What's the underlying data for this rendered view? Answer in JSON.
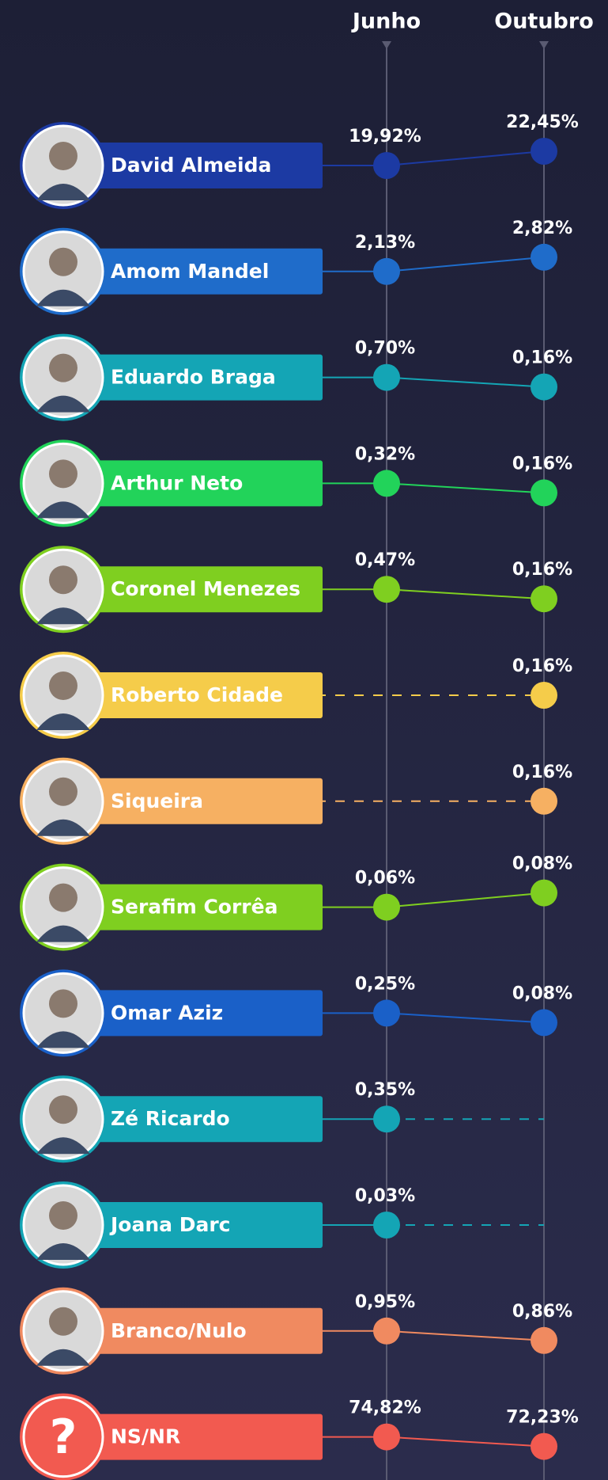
{
  "chart_data": {
    "type": "slope",
    "categories": [
      "Junho",
      "Outubro"
    ],
    "series": [
      {
        "name": "David Almeida",
        "color": "#1c3aa3",
        "values": [
          19.92,
          22.45
        ],
        "value_labels": [
          "19,92%",
          "22,45%"
        ]
      },
      {
        "name": "Amom Mandel",
        "color": "#1f6cca",
        "values": [
          2.13,
          2.82
        ],
        "value_labels": [
          "2,13%",
          "2,82%"
        ]
      },
      {
        "name": "Eduardo Braga",
        "color": "#14a5b5",
        "values": [
          0.7,
          0.16
        ],
        "value_labels": [
          "0,70%",
          "0,16%"
        ]
      },
      {
        "name": "Arthur Neto",
        "color": "#22d35a",
        "values": [
          0.32,
          0.16
        ],
        "value_labels": [
          "0,32%",
          "0,16%"
        ]
      },
      {
        "name": "Coronel Menezes",
        "color": "#7fcf20",
        "values": [
          0.47,
          0.16
        ],
        "value_labels": [
          "0,47%",
          "0,16%"
        ]
      },
      {
        "name": "Roberto Cidade",
        "color": "#f5cc4a",
        "values": [
          null,
          0.16
        ],
        "value_labels": [
          null,
          "0,16%"
        ]
      },
      {
        "name": "Siqueira",
        "color": "#f6b062",
        "values": [
          null,
          0.16
        ],
        "value_labels": [
          null,
          "0,16%"
        ]
      },
      {
        "name": "Serafim Corrêa",
        "color": "#7fcf20",
        "values": [
          0.06,
          0.08
        ],
        "value_labels": [
          "0,06%",
          "0,08%"
        ]
      },
      {
        "name": "Omar Aziz",
        "color": "#1a60c8",
        "values": [
          0.25,
          0.08
        ],
        "value_labels": [
          "0,25%",
          "0,08%"
        ]
      },
      {
        "name": "Zé Ricardo",
        "color": "#14a5b5",
        "values": [
          0.35,
          null
        ],
        "value_labels": [
          "0,35%",
          null
        ]
      },
      {
        "name": "Joana Darc",
        "color": "#14a5b5",
        "values": [
          0.03,
          null
        ],
        "value_labels": [
          "0,03%",
          null
        ]
      },
      {
        "name": "Branco/Nulo",
        "color": "#f08a60",
        "values": [
          0.95,
          0.86
        ],
        "value_labels": [
          "0,95%",
          "0,86%"
        ]
      },
      {
        "name": "NS/NR",
        "color": "#f25a50",
        "values": [
          74.82,
          72.23
        ],
        "value_labels": [
          "74,82%",
          "72,23%"
        ],
        "icon": "?"
      }
    ]
  }
}
